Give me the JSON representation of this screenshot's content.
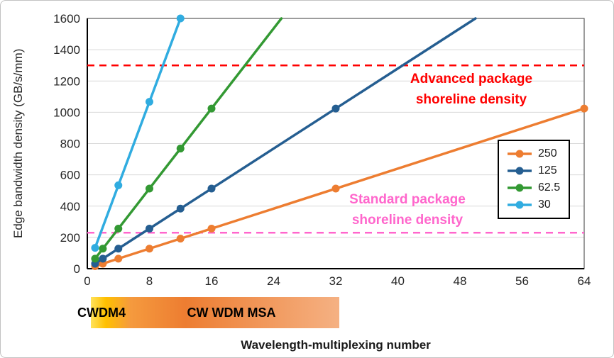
{
  "chart_data": {
    "type": "line",
    "title": "",
    "xlabel": "Wavelength-multiplexing number",
    "ylabel": "Edge bandwidth density (GB/s/mm)",
    "xlim": [
      0,
      64
    ],
    "ylim": [
      0,
      1600
    ],
    "x_ticks": [
      0,
      8,
      16,
      24,
      32,
      40,
      48,
      56,
      64
    ],
    "y_ticks": [
      0,
      200,
      400,
      600,
      800,
      1000,
      1200,
      1400,
      1600
    ],
    "grid": "horizontal",
    "legend_position": "middle-right",
    "series": [
      {
        "name": "250",
        "color": "#ED7D31",
        "x": [
          1,
          2,
          4,
          8,
          12,
          16,
          32,
          64
        ],
        "y": [
          16,
          32,
          64,
          128,
          192,
          256,
          512,
          1024
        ]
      },
      {
        "name": "125",
        "color": "#255E91",
        "x": [
          1,
          2,
          4,
          8,
          12,
          16,
          32
        ],
        "y": [
          32,
          64,
          128,
          256,
          384,
          512,
          1024
        ],
        "line_end": {
          "x": 50,
          "y": 1600
        }
      },
      {
        "name": "62.5",
        "color": "#339933",
        "x": [
          1,
          2,
          4,
          8,
          12,
          16
        ],
        "y": [
          64,
          128,
          256,
          512,
          768,
          1024
        ],
        "line_end": {
          "x": 25,
          "y": 1600
        }
      },
      {
        "name": "30",
        "color": "#30ACE0",
        "x": [
          1,
          4,
          8,
          12
        ],
        "y": [
          133,
          533,
          1067,
          1600
        ]
      }
    ],
    "reference_lines": [
      {
        "value": 1300,
        "label": "Advanced package shoreline density",
        "color": "#FF0000",
        "style": "dashed"
      },
      {
        "value": 230,
        "label": "Standard package shoreline density",
        "color": "#FF66CC",
        "style": "dashed"
      }
    ],
    "range_bar": {
      "start_x": 0.5,
      "end_x": 32.5,
      "labels": [
        "CWDM4",
        "CW WDM MSA"
      ],
      "gradient": [
        {
          "color": "#FFE25A",
          "pos": 0
        },
        {
          "color": "#FFC000",
          "pos": 6
        },
        {
          "color": "#F59A3E",
          "pos": 16
        },
        {
          "color": "#ED7D31",
          "pos": 38
        },
        {
          "color": "#F5B183",
          "pos": 100
        }
      ]
    }
  }
}
